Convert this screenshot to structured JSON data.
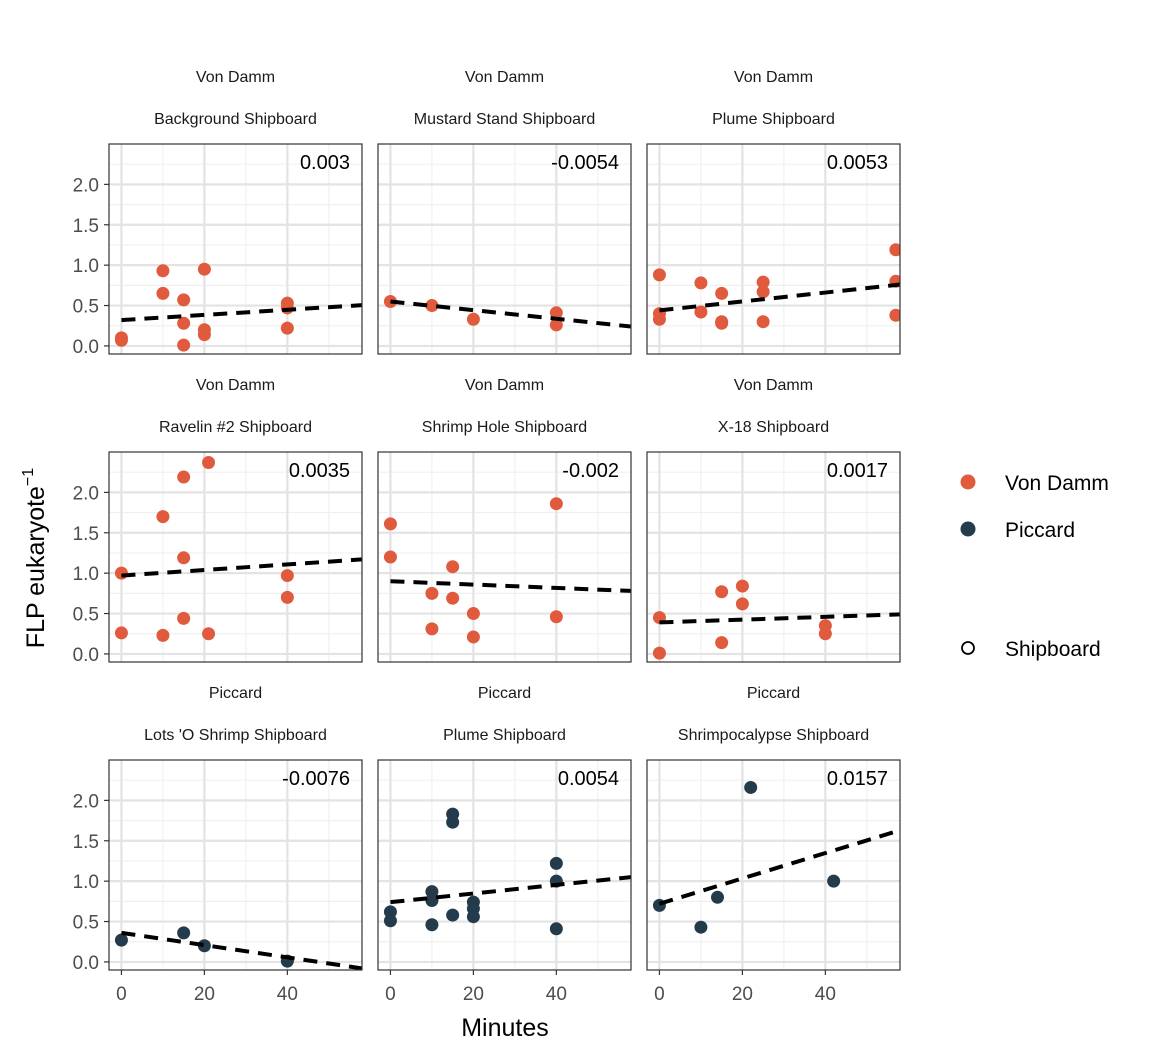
{
  "chart_data": {
    "type": "scatter",
    "layout": "facet grid 3x3 with shared axes",
    "xlabel": "Minutes",
    "ylabel": "FLP eukaryote",
    "ylabel_superscript": "−1",
    "xlim": [
      -3,
      58
    ],
    "ylim": [
      -0.1,
      2.5
    ],
    "xticks": [
      0,
      20,
      40
    ],
    "yticks": [
      "0.0",
      "0.5",
      "1.0",
      "1.5",
      "2.0"
    ],
    "ytick_values": [
      0,
      0.5,
      1.0,
      1.5,
      2.0
    ],
    "grid": true,
    "trend_line": "dashed linear fit",
    "legend_position": "right",
    "legend": {
      "color_items": [
        {
          "label": "Von Damm",
          "color": "#E05A3E"
        },
        {
          "label": "Piccard",
          "color": "#233B4A"
        }
      ],
      "shape_items": [
        {
          "label": "Shipboard",
          "shape": "open-circle"
        }
      ]
    },
    "panels": [
      {
        "strip_top": "Von Damm",
        "strip_bottom": "Background Shipboard",
        "slope_label": "0.003",
        "series": "Von Damm",
        "fit": [
          0.32,
          0.505
        ],
        "points": [
          [
            0,
            0.1
          ],
          [
            0,
            0.07
          ],
          [
            10,
            0.93
          ],
          [
            10,
            0.65
          ],
          [
            15,
            0.57
          ],
          [
            15,
            0.28
          ],
          [
            15,
            0.01
          ],
          [
            20,
            0.95
          ],
          [
            20,
            0.2
          ],
          [
            20,
            0.14
          ],
          [
            40,
            0.53
          ],
          [
            40,
            0.47
          ],
          [
            40,
            0.22
          ]
        ]
      },
      {
        "strip_top": "Von Damm",
        "strip_bottom": "Mustard Stand Shipboard",
        "slope_label": "-0.0054",
        "series": "Von Damm",
        "fit": [
          0.55,
          0.24
        ],
        "points": [
          [
            0,
            0.55
          ],
          [
            10,
            0.5
          ],
          [
            20,
            0.33
          ],
          [
            40,
            0.41
          ],
          [
            40,
            0.26
          ]
        ]
      },
      {
        "strip_top": "Von Damm",
        "strip_bottom": "Plume Shipboard",
        "slope_label": "0.0053",
        "series": "Von Damm",
        "fit": [
          0.44,
          0.76
        ],
        "points": [
          [
            0,
            0.88
          ],
          [
            0,
            0.4
          ],
          [
            0,
            0.33
          ],
          [
            10,
            0.78
          ],
          [
            10,
            0.42
          ],
          [
            15,
            0.65
          ],
          [
            15,
            0.3
          ],
          [
            15,
            0.28
          ],
          [
            25,
            0.79
          ],
          [
            25,
            0.67
          ],
          [
            25,
            0.3
          ],
          [
            57,
            1.19
          ],
          [
            57,
            0.8
          ],
          [
            57,
            0.38
          ]
        ]
      },
      {
        "strip_top": "Von Damm",
        "strip_bottom": "Ravelin #2 Shipboard",
        "slope_label": "0.0035",
        "series": "Von Damm",
        "fit": [
          0.97,
          1.17
        ],
        "points": [
          [
            0,
            1.0
          ],
          [
            0,
            0.26
          ],
          [
            10,
            1.7
          ],
          [
            10,
            0.23
          ],
          [
            15,
            2.19
          ],
          [
            15,
            1.19
          ],
          [
            15,
            0.44
          ],
          [
            21,
            2.37
          ],
          [
            21,
            0.25
          ],
          [
            40,
            0.97
          ],
          [
            40,
            0.7
          ]
        ]
      },
      {
        "strip_top": "Von Damm",
        "strip_bottom": "Shrimp Hole Shipboard",
        "slope_label": "-0.002",
        "series": "Von Damm",
        "fit": [
          0.9,
          0.78
        ],
        "points": [
          [
            0,
            1.61
          ],
          [
            0,
            1.2
          ],
          [
            10,
            0.75
          ],
          [
            10,
            0.31
          ],
          [
            15,
            1.08
          ],
          [
            15,
            0.69
          ],
          [
            20,
            0.5
          ],
          [
            20,
            0.21
          ],
          [
            40,
            1.86
          ],
          [
            40,
            0.46
          ]
        ]
      },
      {
        "strip_top": "Von Damm",
        "strip_bottom": "X-18 Shipboard",
        "slope_label": "0.0017",
        "series": "Von Damm",
        "fit": [
          0.39,
          0.49
        ],
        "points": [
          [
            0,
            0.45
          ],
          [
            0,
            0.01
          ],
          [
            15,
            0.77
          ],
          [
            15,
            0.14
          ],
          [
            20,
            0.84
          ],
          [
            20,
            0.62
          ],
          [
            40,
            0.35
          ],
          [
            40,
            0.25
          ]
        ]
      },
      {
        "strip_top": "Piccard",
        "strip_bottom": "Lots 'O Shrimp Shipboard",
        "slope_label": "-0.0076",
        "series": "Piccard",
        "fit": [
          0.36,
          -0.08
        ],
        "points": [
          [
            0,
            0.27
          ],
          [
            15,
            0.36
          ],
          [
            20,
            0.2
          ],
          [
            40,
            0.01
          ]
        ]
      },
      {
        "strip_top": "Piccard",
        "strip_bottom": "Plume Shipboard",
        "slope_label": "0.0054",
        "series": "Piccard",
        "fit": [
          0.74,
          1.05
        ],
        "points": [
          [
            0,
            0.62
          ],
          [
            0,
            0.51
          ],
          [
            10,
            0.87
          ],
          [
            10,
            0.76
          ],
          [
            10,
            0.46
          ],
          [
            15,
            1.83
          ],
          [
            15,
            1.73
          ],
          [
            15,
            0.58
          ],
          [
            20,
            0.74
          ],
          [
            20,
            0.66
          ],
          [
            20,
            0.56
          ],
          [
            40,
            1.22
          ],
          [
            40,
            1.0
          ],
          [
            40,
            0.41
          ]
        ]
      },
      {
        "strip_top": "Piccard",
        "strip_bottom": "Shrimpocalypse Shipboard",
        "slope_label": "0.0157",
        "series": "Piccard",
        "fit": [
          0.72,
          1.63
        ],
        "points": [
          [
            0,
            0.7
          ],
          [
            10,
            0.43
          ],
          [
            14,
            0.8
          ],
          [
            22,
            2.16
          ],
          [
            42,
            1.0
          ]
        ]
      }
    ]
  }
}
